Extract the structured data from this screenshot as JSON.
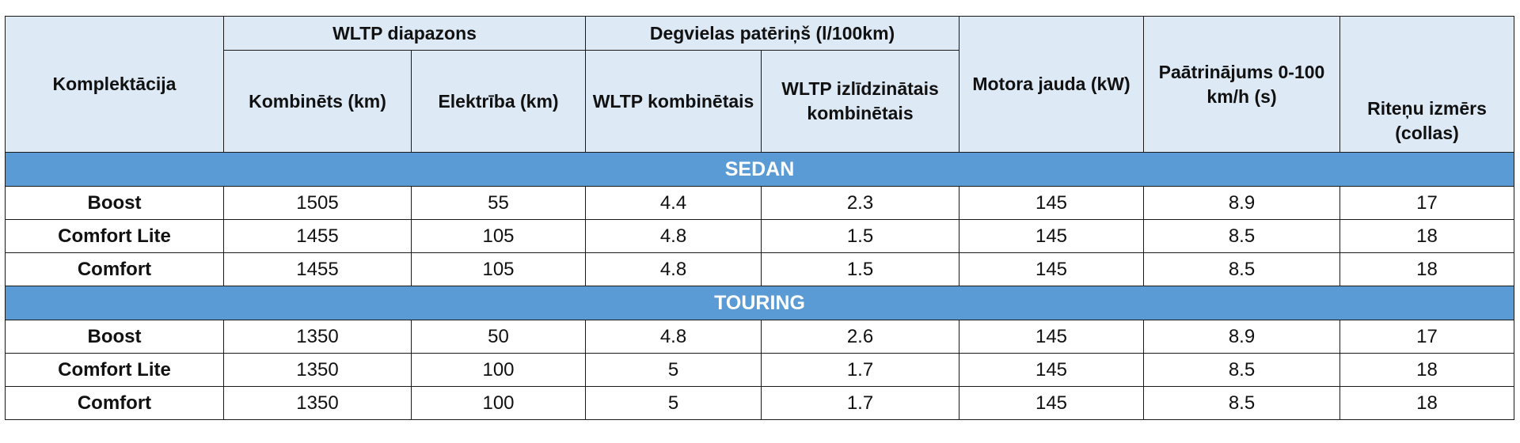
{
  "headers": {
    "komplektacija": "Komplektācija",
    "wltp_range": "WLTP diapazons",
    "combined_km": "Kombinēts (km)",
    "electric_km": "Elektrība (km)",
    "fuel": "Degvielas patēriņš (l/100km)",
    "wltp_combined": "WLTP kombinētais",
    "wltp_weighted": "WLTP izlīdzinātais kombinētais",
    "power": "Motora jauda (kW)",
    "accel": "Paātrinājums 0-100 km/h (s)",
    "wheel": "Riteņu izmērs (collas)"
  },
  "sections": [
    {
      "title": "SEDAN",
      "rows": [
        [
          "Boost",
          "1505",
          "55",
          "4.4",
          "2.3",
          "145",
          "8.9",
          "17"
        ],
        [
          "Comfort Lite",
          "1455",
          "105",
          "4.8",
          "1.5",
          "145",
          "8.5",
          "18"
        ],
        [
          "Comfort",
          "1455",
          "105",
          "4.8",
          "1.5",
          "145",
          "8.5",
          "18"
        ]
      ]
    },
    {
      "title": "TOURING",
      "rows": [
        [
          "Boost",
          "1350",
          "50",
          "4.8",
          "2.6",
          "145",
          "8.9",
          "17"
        ],
        [
          "Comfort Lite",
          "1350",
          "100",
          "5",
          "1.7",
          "145",
          "8.5",
          "18"
        ],
        [
          "Comfort",
          "1350",
          "100",
          "5",
          "1.7",
          "145",
          "8.5",
          "18"
        ]
      ]
    }
  ],
  "colors": {
    "header_bg": "#dde9f5",
    "section_bg": "#5b9bd5",
    "section_text": "#ffffff",
    "border": "#1a1a1a"
  }
}
